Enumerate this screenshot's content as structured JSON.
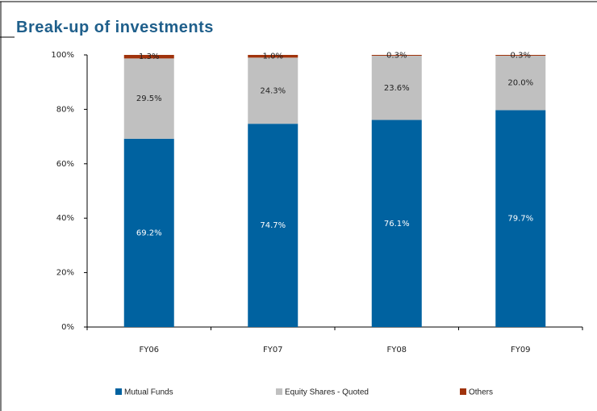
{
  "chart_data": {
    "type": "stacked_bar",
    "title": "Break-up of investments",
    "categories": [
      "FY06",
      "FY07",
      "FY08",
      "FY09"
    ],
    "series": [
      {
        "name": "Mutual Funds",
        "color": "#0062a0",
        "values": [
          69.2,
          74.7,
          76.1,
          79.7
        ],
        "value_labels": [
          "69.2%",
          "74.7%",
          "76.1%",
          "79.7%"
        ]
      },
      {
        "name": "Equity Shares - Quoted",
        "color": "#c0c0c0",
        "values": [
          29.5,
          24.3,
          23.6,
          20.0
        ],
        "value_labels": [
          "29.5%",
          "24.3%",
          "23.6%",
          "20.0%"
        ]
      },
      {
        "name": "Others",
        "color": "#a0330c",
        "values": [
          1.3,
          1.0,
          0.3,
          0.3
        ],
        "value_labels": [
          "1.3%",
          "1.0%",
          "0.3%",
          "0.3%"
        ]
      }
    ],
    "ylim": [
      0,
      100
    ],
    "yticks": [
      {
        "value": 0,
        "label": "0%"
      },
      {
        "value": 20,
        "label": "20%"
      },
      {
        "value": 40,
        "label": "40%"
      },
      {
        "value": 60,
        "label": "60%"
      },
      {
        "value": 80,
        "label": "80%"
      },
      {
        "value": 100,
        "label": "100%"
      }
    ],
    "legend": "bottom"
  }
}
